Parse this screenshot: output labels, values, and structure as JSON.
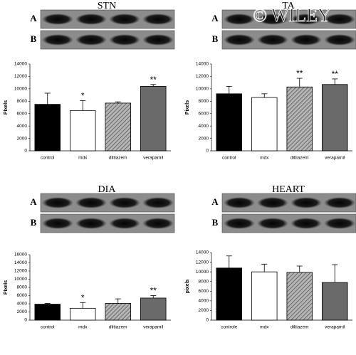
{
  "watermark": "© WILEY",
  "chart_data": [
    {
      "type": "bar",
      "title": "STN",
      "blot_labels": [
        "A",
        "B"
      ],
      "ylabel": "Pixels",
      "categories": [
        "control",
        "mdx",
        "diltiazem",
        "verapamil"
      ],
      "values": [
        7500,
        6500,
        7700,
        10400
      ],
      "errors": [
        1800,
        1600,
        200,
        300
      ],
      "colors": [
        "#000000",
        "#ffffff",
        "#9a9a9a",
        "#6a6a6a"
      ],
      "hatched": [
        false,
        false,
        true,
        false
      ],
      "significance": [
        {
          "index": 1,
          "label": "*"
        },
        {
          "index": 3,
          "label": "**"
        }
      ],
      "ylim": [
        0,
        14000
      ],
      "yticks": [
        0,
        2000,
        4000,
        6000,
        8000,
        10000,
        12000,
        14000
      ]
    },
    {
      "type": "bar",
      "title": "TA",
      "blot_labels": [
        "A",
        "B"
      ],
      "ylabel": "Pixels",
      "categories": [
        "control",
        "mdx",
        "diltiazem",
        "verapamil"
      ],
      "values": [
        9200,
        8600,
        10300,
        10700
      ],
      "errors": [
        1200,
        600,
        1400,
        900
      ],
      "colors": [
        "#000000",
        "#ffffff",
        "#9a9a9a",
        "#6a6a6a"
      ],
      "hatched": [
        false,
        false,
        true,
        false
      ],
      "significance": [
        {
          "index": 2,
          "label": "**"
        },
        {
          "index": 3,
          "label": "**"
        }
      ],
      "ylim": [
        0,
        14000
      ],
      "yticks": [
        0,
        2000,
        4000,
        6000,
        8000,
        10000,
        12000,
        14000
      ]
    },
    {
      "type": "bar",
      "title": "DIA",
      "blot_labels": [
        "A",
        "B"
      ],
      "ylabel": "Pixels",
      "categories": [
        "control",
        "mdx",
        "diltiazem",
        "verapamil"
      ],
      "values": [
        3900,
        2900,
        4100,
        5400
      ],
      "errors": [
        200,
        1400,
        1100,
        600
      ],
      "colors": [
        "#000000",
        "#ffffff",
        "#9a9a9a",
        "#6a6a6a"
      ],
      "hatched": [
        false,
        false,
        true,
        false
      ],
      "significance": [
        {
          "index": 1,
          "label": "*"
        },
        {
          "index": 3,
          "label": "**"
        }
      ],
      "ylim": [
        0,
        16000
      ],
      "yticks": [
        0,
        2000,
        4000,
        6000,
        8000,
        10000,
        12000,
        14000,
        16000
      ]
    },
    {
      "type": "bar",
      "title": "HEART",
      "blot_labels": [
        "A",
        "B"
      ],
      "ylabel": "pixels",
      "categories": [
        "controle",
        "mdx",
        "diltiazem",
        "verapamil"
      ],
      "values": [
        10800,
        10000,
        9900,
        7800
      ],
      "errors": [
        2500,
        1600,
        1300,
        3700
      ],
      "colors": [
        "#000000",
        "#ffffff",
        "#9a9a9a",
        "#6a6a6a"
      ],
      "hatched": [
        false,
        false,
        true,
        false
      ],
      "significance": [],
      "ylim": [
        0,
        14000
      ],
      "yticks": [
        0,
        2000,
        4000,
        6000,
        8000,
        10000,
        12000,
        14000
      ]
    }
  ]
}
